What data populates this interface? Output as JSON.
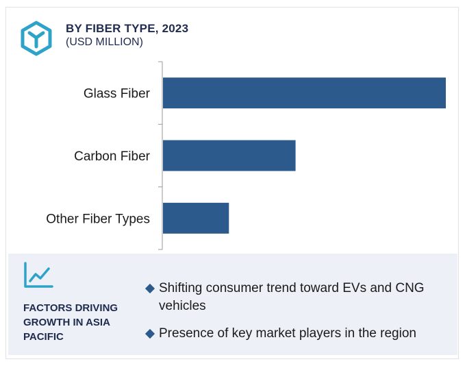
{
  "header": {
    "title": "BY FIBER TYPE, 2023",
    "subtitle": "(USD MILLION)",
    "icon": "hexagon-y-logo-icon"
  },
  "colors": {
    "bar": "#2c5a8c",
    "accent": "#2ea3c9",
    "heading": "#1e2a4e",
    "panel_bg": "#edf1f7"
  },
  "chart_data": {
    "type": "bar",
    "orientation": "horizontal",
    "categories": [
      "Glass Fiber",
      "Carbon Fiber",
      "Other Fiber Types"
    ],
    "values": [
      100,
      47,
      23.5
    ],
    "xlim": [
      0,
      100
    ],
    "title": "BY FIBER TYPE, 2023",
    "subtitle": "(USD MILLION)",
    "grid": false,
    "value_axis_labels": false
  },
  "factors": {
    "icon": "line-chart-icon",
    "heading": "FACTORS DRIVING GROWTH IN ASIA PACIFIC",
    "items": [
      "Shifting consumer trend toward EVs and CNG vehicles",
      "Presence of key market players in the region"
    ]
  }
}
